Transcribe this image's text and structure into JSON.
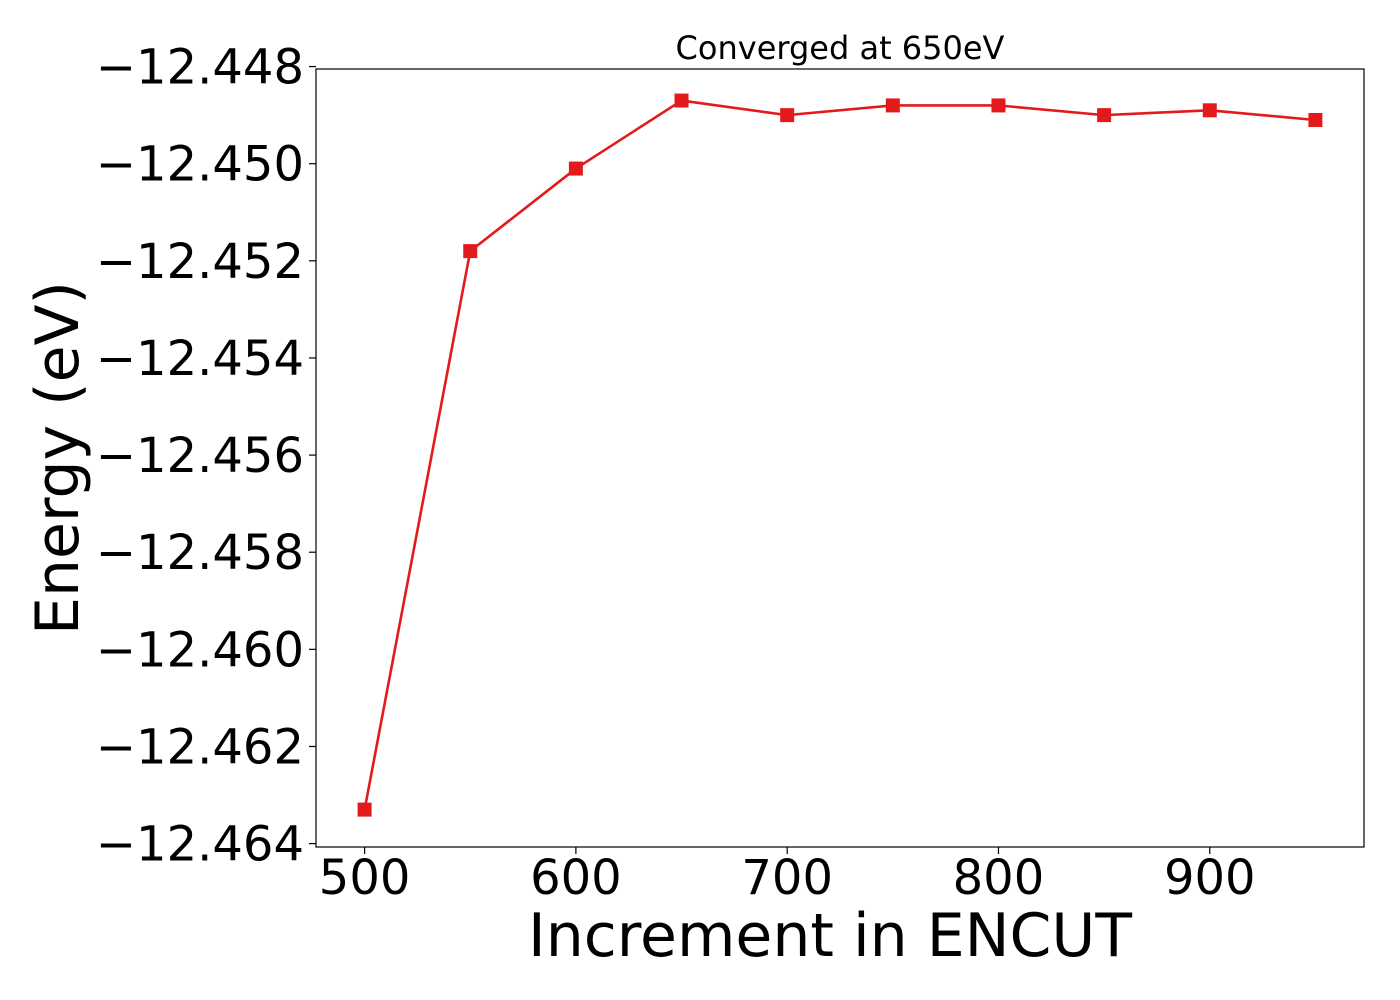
{
  "chart_data": {
    "type": "line",
    "title": "Converged at 650eV",
    "xlabel": "Increment in ENCUT",
    "ylabel": "Energy (eV)",
    "x": [
      500,
      550,
      600,
      650,
      700,
      750,
      800,
      850,
      900,
      950
    ],
    "series": [
      {
        "values": [
          -12.4633,
          -12.4518,
          -12.4501,
          -12.4487,
          -12.449,
          -12.4488,
          -12.4488,
          -12.449,
          -12.4489,
          -12.4491
        ],
        "color": "#e31a1c",
        "marker": "square"
      }
    ],
    "xlim": [
      477,
      973
    ],
    "ylim": [
      -12.46407,
      -12.44805
    ],
    "xticks": [
      500,
      600,
      700,
      800,
      900
    ],
    "xtick_labels": [
      "500",
      "600",
      "700",
      "800",
      "900"
    ],
    "yticks": [
      -12.448,
      -12.45,
      -12.452,
      -12.454,
      -12.456,
      -12.458,
      -12.46,
      -12.462,
      -12.464
    ],
    "ytick_labels": [
      "−12.448",
      "−12.450",
      "−12.452",
      "−12.454",
      "−12.456",
      "−12.458",
      "−12.460",
      "−12.462",
      "−12.464"
    ],
    "grid": false,
    "legend": "none"
  }
}
